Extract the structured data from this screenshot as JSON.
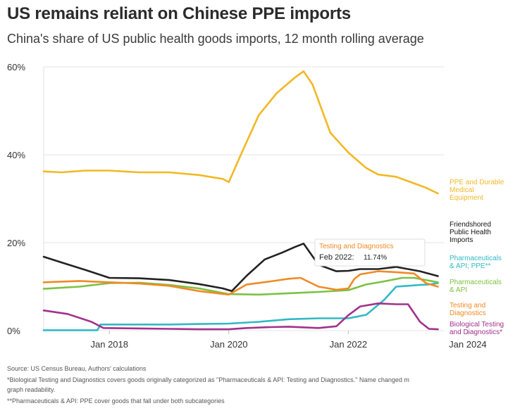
{
  "header": {
    "title": "US remains reliant on Chinese PPE imports",
    "subtitle": "China's share of US public health goods imports, 12 month rolling average"
  },
  "footnotes": {
    "source": "Source: US Census Bureau, Authors' calculations",
    "note1": "*Biological Testing and Diagnostics covers goods originally categorized as \"Pharmaceuticals & API: Testing and Diagnostics.\" Name changed m",
    "note1b": "graph readability.",
    "note2": "**Pharmaceuticals & API: PPE cover goods that fall under both subcategories"
  },
  "tooltip": {
    "series": "Testing and Diagnostics",
    "date": "Feb 2022:",
    "value": "11.74%"
  },
  "chart_data": {
    "type": "line",
    "title": "US remains reliant on Chinese PPE imports",
    "subtitle": "China's share of US public health goods imports, 12 month rolling average",
    "xlabel": "",
    "ylabel": "",
    "xlim": [
      2016.9,
      2023.6
    ],
    "ylim": [
      0,
      60
    ],
    "yticks": [
      0,
      20,
      40,
      60
    ],
    "ytick_labels": [
      "0%",
      "20%",
      "40%",
      "60%"
    ],
    "xticks": [
      2018,
      2020,
      2022,
      2024
    ],
    "xtick_labels": [
      "Jan 2018",
      "Jan 2020",
      "Jan 2022",
      "Jan 2024"
    ],
    "grid": true,
    "series": [
      {
        "name": "PPE and Durable Medical Equipment",
        "label_lines": [
          "PPE and Durable",
          "Medical",
          "Equipment"
        ],
        "color": "#f2b824",
        "points": [
          [
            2016.9,
            36.2
          ],
          [
            2017.2,
            36
          ],
          [
            2017.6,
            36.4
          ],
          [
            2018,
            36.4
          ],
          [
            2018.5,
            36
          ],
          [
            2019,
            36
          ],
          [
            2019.5,
            35.4
          ],
          [
            2019.9,
            34.5
          ],
          [
            2020.0,
            33.8
          ],
          [
            2020.2,
            40
          ],
          [
            2020.5,
            49
          ],
          [
            2020.8,
            54
          ],
          [
            2021.1,
            57.5
          ],
          [
            2021.25,
            59
          ],
          [
            2021.4,
            56
          ],
          [
            2021.7,
            45
          ],
          [
            2022.0,
            40.5
          ],
          [
            2022.3,
            37
          ],
          [
            2022.5,
            35.5
          ],
          [
            2022.8,
            35
          ],
          [
            2023.0,
            34
          ],
          [
            2023.3,
            32.5
          ],
          [
            2023.5,
            31.2
          ]
        ]
      },
      {
        "name": "Friendshored Public Health Imports",
        "label_lines": [
          "Friendshored",
          "Public Health",
          "Imports"
        ],
        "color": "#222222",
        "points": [
          [
            2016.9,
            16.8
          ],
          [
            2017.2,
            15.5
          ],
          [
            2017.6,
            13.8
          ],
          [
            2018,
            12
          ],
          [
            2018.5,
            11.9
          ],
          [
            2019,
            11.5
          ],
          [
            2019.5,
            10.6
          ],
          [
            2019.9,
            9.6
          ],
          [
            2020.05,
            9
          ],
          [
            2020.3,
            12.5
          ],
          [
            2020.6,
            16.2
          ],
          [
            2020.9,
            17.8
          ],
          [
            2021.1,
            19
          ],
          [
            2021.25,
            19.8
          ],
          [
            2021.5,
            15
          ],
          [
            2021.8,
            13.5
          ],
          [
            2022.0,
            13.6
          ],
          [
            2022.2,
            14
          ],
          [
            2022.5,
            14
          ],
          [
            2022.8,
            14.5
          ],
          [
            2023.0,
            14
          ],
          [
            2023.2,
            13.5
          ],
          [
            2023.5,
            12.4
          ]
        ]
      },
      {
        "name": "Pharmaceuticals & API; PPE**",
        "label_lines": [
          "Pharmaceuticals",
          "& API; PPE**"
        ],
        "color": "#30b9c4",
        "points": [
          [
            2016.9,
            0.1
          ],
          [
            2017.5,
            0.1
          ],
          [
            2017.8,
            0.1
          ],
          [
            2017.85,
            1.4
          ],
          [
            2018.5,
            1.4
          ],
          [
            2019,
            1.4
          ],
          [
            2019.5,
            1.5
          ],
          [
            2020,
            1.6
          ],
          [
            2020.5,
            2
          ],
          [
            2021,
            2.6
          ],
          [
            2021.5,
            2.8
          ],
          [
            2022,
            2.8
          ],
          [
            2022.3,
            3.6
          ],
          [
            2022.6,
            7
          ],
          [
            2022.8,
            10
          ],
          [
            2023.0,
            10.2
          ],
          [
            2023.2,
            10.4
          ],
          [
            2023.35,
            10.5
          ],
          [
            2023.5,
            10.8
          ]
        ]
      },
      {
        "name": "Pharmaceuticals & API",
        "label_lines": [
          "Pharmaceuticals",
          "& API"
        ],
        "color": "#7cc143",
        "points": [
          [
            2016.9,
            9.5
          ],
          [
            2017.5,
            10
          ],
          [
            2018,
            10.8
          ],
          [
            2018.5,
            10.9
          ],
          [
            2019,
            10.4
          ],
          [
            2019.5,
            9.6
          ],
          [
            2020,
            8.3
          ],
          [
            2020.5,
            8.2
          ],
          [
            2021,
            8.5
          ],
          [
            2021.5,
            8.8
          ],
          [
            2022,
            9.2
          ],
          [
            2022.3,
            10.5
          ],
          [
            2022.6,
            11.2
          ],
          [
            2022.9,
            12
          ],
          [
            2023.1,
            12
          ],
          [
            2023.3,
            11.5
          ],
          [
            2023.5,
            11
          ]
        ]
      },
      {
        "name": "Testing and Diagnostics",
        "label_lines": [
          "Testing and",
          "Diagnostics"
        ],
        "color": "#f08a24",
        "points": [
          [
            2016.9,
            11
          ],
          [
            2017.5,
            11.3
          ],
          [
            2018,
            11
          ],
          [
            2018.5,
            10.7
          ],
          [
            2019,
            10.2
          ],
          [
            2019.5,
            9
          ],
          [
            2020,
            8.2
          ],
          [
            2020.3,
            10.5
          ],
          [
            2020.7,
            11.2
          ],
          [
            2021.0,
            11.8
          ],
          [
            2021.2,
            12
          ],
          [
            2021.5,
            10
          ],
          [
            2021.8,
            9.3
          ],
          [
            2022.0,
            9.6
          ],
          [
            2022.1,
            11.74
          ],
          [
            2022.2,
            12.8
          ],
          [
            2022.5,
            13.5
          ],
          [
            2022.8,
            13.3
          ],
          [
            2023.1,
            13
          ],
          [
            2023.3,
            10.8
          ],
          [
            2023.5,
            10
          ]
        ]
      },
      {
        "name": "Biological Testing and Diagnostics*",
        "label_lines": [
          "Biological Testing",
          "and Diagnostics*"
        ],
        "color": "#a1318d",
        "points": [
          [
            2016.9,
            4.6
          ],
          [
            2017.3,
            3.8
          ],
          [
            2017.7,
            2
          ],
          [
            2017.9,
            0.6
          ],
          [
            2018.5,
            0.5
          ],
          [
            2019,
            0.4
          ],
          [
            2019.5,
            0.3
          ],
          [
            2020,
            0.3
          ],
          [
            2020.3,
            0.6
          ],
          [
            2020.7,
            0.8
          ],
          [
            2021,
            0.9
          ],
          [
            2021.5,
            0.6
          ],
          [
            2021.8,
            1
          ],
          [
            2022.0,
            3.5
          ],
          [
            2022.2,
            5.5
          ],
          [
            2022.5,
            6.2
          ],
          [
            2022.8,
            6
          ],
          [
            2023.0,
            6
          ],
          [
            2023.2,
            2
          ],
          [
            2023.35,
            0.4
          ],
          [
            2023.5,
            0.3
          ]
        ]
      }
    ]
  }
}
